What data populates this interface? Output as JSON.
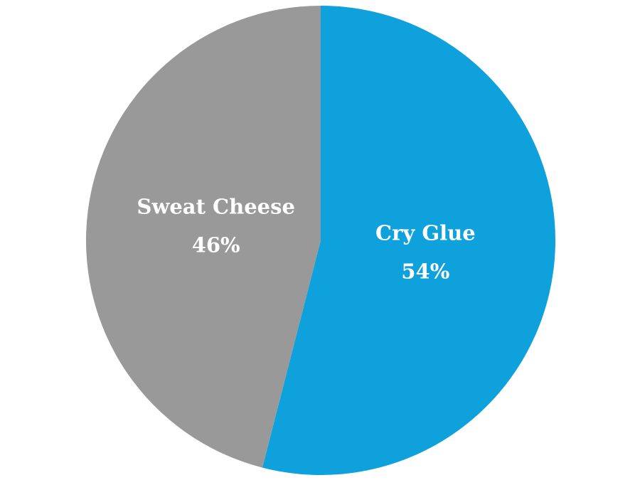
{
  "chart_data": {
    "type": "pie",
    "categories": [
      "Cry Glue",
      "Sweat Cheese"
    ],
    "values": [
      54,
      46
    ],
    "value_labels": [
      "54%",
      "46%"
    ],
    "colors": [
      "#0fa1dc",
      "#999999"
    ]
  }
}
